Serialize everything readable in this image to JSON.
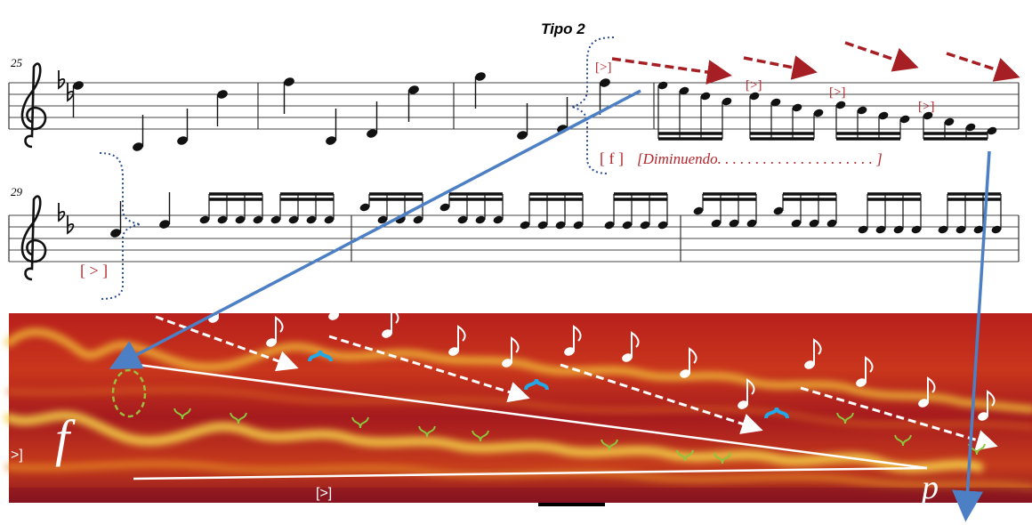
{
  "header": {
    "title": "Tipo 2"
  },
  "measures": [
    "25",
    "29"
  ],
  "accents": [
    "[>]",
    "[>]",
    "[>]",
    "[>]"
  ],
  "bass_accent": "[ > ]",
  "dynamics": {
    "forte": "[ f ]",
    "diminuendo": "[Diminuendo. . . . . . . . . . . . . . . . . . . . . ]"
  },
  "spectrogram": {
    "forte": "f",
    "piano": "p",
    "accent": "[>]",
    "edge_label": ">]"
  }
}
